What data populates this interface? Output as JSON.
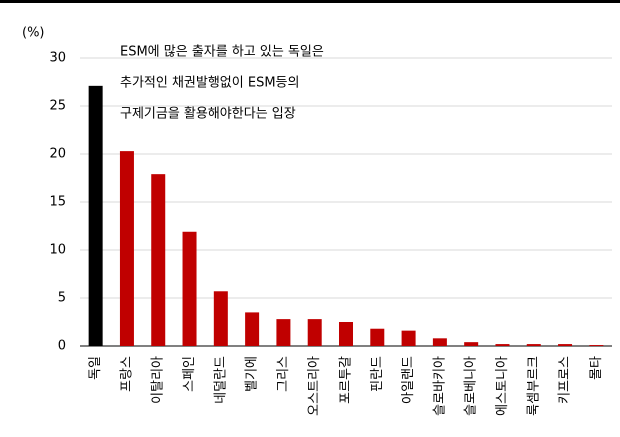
{
  "chart_data": {
    "type": "bar",
    "y_unit": "(%)",
    "annotation": [
      "ESM에 많은 출자를 하고 있는 독일은",
      "추가적인 채권발행없이 ESM등의",
      "구제기금을 활용해야한다는 입장"
    ],
    "categories": [
      "독일",
      "프랑스",
      "이탈리아",
      "스페인",
      "네덜란드",
      "벨기에",
      "그리스",
      "오스트리아",
      "포르투갈",
      "핀란드",
      "아일랜드",
      "슬로바키아",
      "슬로베니아",
      "에스토니아",
      "룩셈부르크",
      "키프로스",
      "몰타"
    ],
    "values": [
      27.1,
      20.3,
      17.9,
      11.9,
      5.7,
      3.5,
      2.8,
      2.8,
      2.5,
      1.8,
      1.6,
      0.8,
      0.4,
      0.2,
      0.2,
      0.2,
      0.1
    ],
    "colors": [
      "#000000",
      "#c00000",
      "#c00000",
      "#c00000",
      "#c00000",
      "#c00000",
      "#c00000",
      "#c00000",
      "#c00000",
      "#c00000",
      "#c00000",
      "#c00000",
      "#c00000",
      "#c00000",
      "#c00000",
      "#c00000",
      "#c00000"
    ],
    "ylim": [
      0,
      30
    ],
    "yticks": [
      0,
      5,
      10,
      15,
      20,
      25,
      30
    ],
    "grid": true
  }
}
